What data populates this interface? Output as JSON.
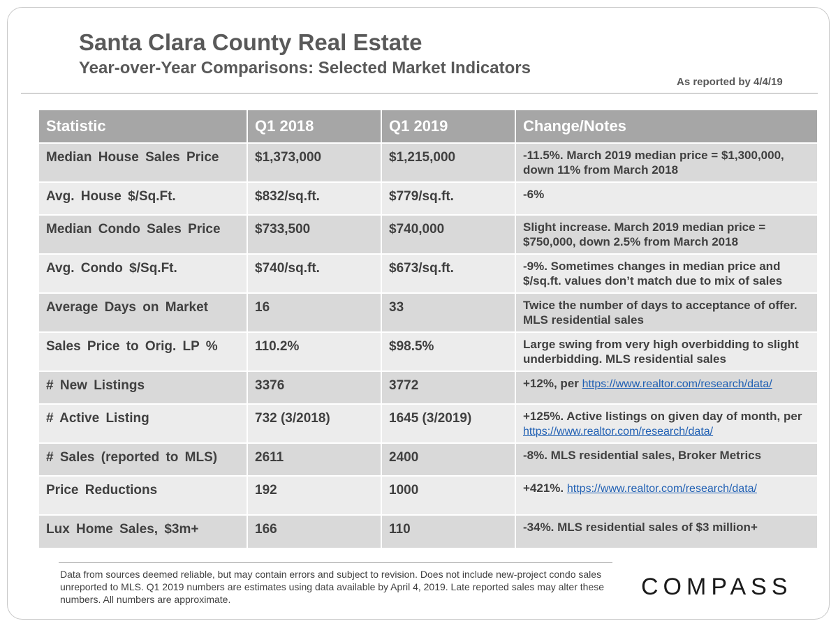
{
  "header": {
    "title": "Santa Clara County Real Estate",
    "subtitle": "Year-over-Year Comparisons: Selected Market Indicators",
    "as_of": "As reported by 4/4/19"
  },
  "table": {
    "columns": [
      "Statistic",
      "Q1 2018",
      "Q1 2019",
      "Change/Notes"
    ],
    "rows": [
      {
        "stat": "Median House Sales Price",
        "q1_2018": "$1,373,000",
        "q1_2019": "$1,215,000",
        "notes": "-11.5%. March 2019 median price = $1,300,000, down 11% from March 2018",
        "link": ""
      },
      {
        "stat": "Avg. House $/Sq.Ft.",
        "q1_2018": "$832/sq.ft.",
        "q1_2019": "$779/sq.ft.",
        "notes": "-6%",
        "link": ""
      },
      {
        "stat": "Median Condo Sales Price",
        "q1_2018": "$733,500",
        "q1_2019": "$740,000",
        "notes": "Slight increase. March 2019 median price = $750,000, down 2.5% from March 2018",
        "link": ""
      },
      {
        "stat": "Avg. Condo $/Sq.Ft.",
        "q1_2018": "$740/sq.ft.",
        "q1_2019": "$673/sq.ft.",
        "notes": "-9%. Sometimes changes in median price and $/sq.ft. values don’t match due to mix of sales",
        "link": ""
      },
      {
        "stat": "Average Days on Market",
        "q1_2018": "16",
        "q1_2019": "33",
        "notes": "Twice the number of days to acceptance of offer. MLS residential sales",
        "link": ""
      },
      {
        "stat": "Sales Price to Orig. LP %",
        "q1_2018": "110.2%",
        "q1_2019": "$98.5%",
        "notes": "Large swing from very high overbidding to slight underbidding. MLS residential sales",
        "link": ""
      },
      {
        "stat": "# New Listings",
        "q1_2018": "3376",
        "q1_2019": "3772",
        "notes": "+12%, per",
        "link": "https://www.realtor.com/research/data/"
      },
      {
        "stat": "# Active Listing",
        "q1_2018": "732 (3/2018)",
        "q1_2019": "1645 (3/2019)",
        "notes": "+125%. Active listings on given day of month, per",
        "link": "https://www.realtor.com/research/data/"
      },
      {
        "stat": "# Sales (reported to MLS)",
        "q1_2018": "2611",
        "q1_2019": "2400",
        "notes": "-8%. MLS residential sales, Broker Metrics",
        "link": ""
      },
      {
        "stat": "Price Reductions",
        "q1_2018": "192",
        "q1_2019": "1000",
        "notes": "+421%.",
        "link": "https://www.realtor.com/research/data/"
      },
      {
        "stat": "Lux Home Sales, $3m+",
        "q1_2018": "166",
        "q1_2019": "110",
        "notes": "-34%. MLS residential sales of $3 million+",
        "link": ""
      }
    ]
  },
  "footnote": "Data from sources deemed reliable, but may contain errors and subject to revision. Does not include new-project condo sales unreported to MLS. Q1 2019 numbers are estimates using data available by April 4, 2019. Late reported sales may alter these numbers. All numbers are approximate.",
  "logo": "COMPASS"
}
